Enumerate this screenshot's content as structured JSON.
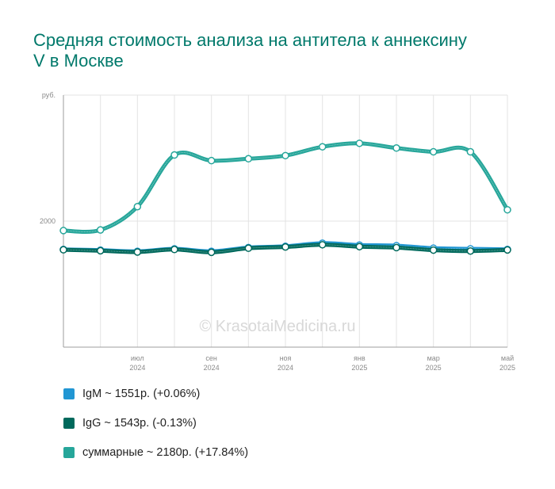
{
  "chart_data": {
    "type": "line",
    "title": "Средняя стоимость анализа на антитела к аннексину V в Москве",
    "y_unit_label": "руб.",
    "y_ticks": [
      2000
    ],
    "ylim": [
      0,
      4000
    ],
    "grid": true,
    "legend_position": "bottom",
    "watermark": "© KrasotaiMedicina.ru",
    "x": [
      "2024-05",
      "2024-06",
      "2024-07",
      "2024-08",
      "2024-09",
      "2024-10",
      "2024-11",
      "2024-12",
      "2025-01",
      "2025-02",
      "2025-03",
      "2025-04",
      "2025-05"
    ],
    "x_tick_labels": [
      {
        "month": "июл",
        "year": "2024"
      },
      {
        "month": "сен",
        "year": "2024"
      },
      {
        "month": "ноя",
        "year": "2024"
      },
      {
        "month": "янв",
        "year": "2025"
      },
      {
        "month": "мар",
        "year": "2025"
      },
      {
        "month": "май",
        "year": "2025"
      }
    ],
    "x_tick_indices": [
      2,
      4,
      6,
      8,
      10,
      12
    ],
    "series": [
      {
        "name": "IgM",
        "color": "#2196d3",
        "values": [
          1550,
          1540,
          1520,
          1560,
          1520,
          1580,
          1600,
          1650,
          1620,
          1610,
          1570,
          1560,
          1551
        ]
      },
      {
        "name": "IgG",
        "color": "#00695c",
        "values": [
          1545,
          1530,
          1510,
          1550,
          1505,
          1570,
          1590,
          1625,
          1595,
          1580,
          1540,
          1525,
          1543
        ]
      },
      {
        "name": "суммарные",
        "color": "#26a69a",
        "values": [
          1850,
          1860,
          2230,
          3050,
          2960,
          2990,
          3040,
          3180,
          3235,
          3160,
          3100,
          3100,
          2180
        ]
      }
    ]
  },
  "legend": [
    {
      "text": "IgM ~ 1551р. (+0.06%)",
      "color": "#2196d3"
    },
    {
      "text": "IgG ~ 1543р. (-0.13%)",
      "color": "#00695c"
    },
    {
      "text": "суммарные ~ 2180р. (+17.84%)",
      "color": "#26a69a"
    }
  ]
}
